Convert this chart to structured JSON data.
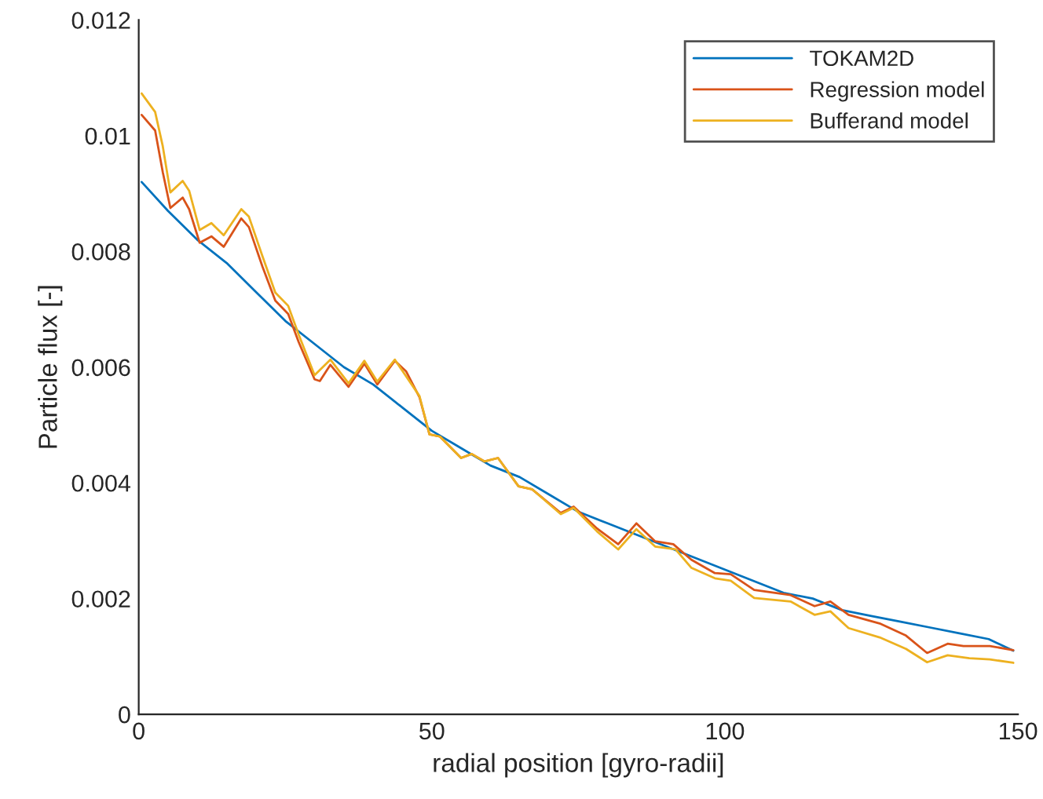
{
  "chart_data": {
    "type": "line",
    "xlabel": "radial position [gyro-radii]",
    "ylabel": "Particle flux [-]",
    "xlim": [
      0,
      150
    ],
    "ylim": [
      0,
      0.012
    ],
    "xticks": [
      0,
      50,
      100,
      150
    ],
    "yticks": [
      0,
      0.002,
      0.004,
      0.006,
      0.008,
      0.01,
      0.012
    ],
    "grid": false,
    "legend": "top right",
    "marker": "none",
    "line_style": "solid",
    "series": [
      {
        "name": "TOKAM2D",
        "color": "#0072bd",
        "x": [
          0.5,
          5,
          10,
          15,
          20,
          25,
          30,
          35,
          40,
          45,
          50,
          55,
          60,
          65,
          70,
          75,
          80,
          85,
          90,
          95,
          100,
          105,
          110,
          115,
          120,
          125,
          130,
          135,
          140,
          145,
          149.2
        ],
        "values": [
          0.0092,
          0.0087,
          0.0082,
          0.0078,
          0.0073,
          0.0068,
          0.0064,
          0.006,
          0.0057,
          0.0053,
          0.0049,
          0.0046,
          0.0043,
          0.0041,
          0.0038,
          0.0035,
          0.0033,
          0.0031,
          0.0029,
          0.0027,
          0.0025,
          0.0023,
          0.0021,
          0.002,
          0.0018,
          0.0017,
          0.0016,
          0.0015,
          0.0014,
          0.0013,
          0.0011
        ]
      },
      {
        "name": "Regression model",
        "color": "#d95319",
        "x": [
          0.5,
          2.8,
          4.1,
          5.4,
          7.5,
          8.6,
          10.4,
          12.4,
          14.5,
          17.5,
          18.8,
          21.1,
          23.3,
          25.5,
          27.3,
          30.0,
          30.9,
          32.7,
          35.8,
          38.5,
          40.7,
          43.7,
          45.6,
          47.9,
          49.6,
          51.4,
          55.0,
          56.8,
          59.0,
          61.3,
          64.8,
          67.1,
          72.0,
          74.2,
          78.2,
          81.8,
          84.9,
          88.1,
          91.2,
          94.3,
          98.3,
          101.0,
          105.0,
          111.2,
          115.3,
          118.0,
          121.1,
          126.4,
          130.9,
          134.5,
          138.0,
          140.7,
          145.2,
          149.2
        ],
        "values": [
          0.01036,
          0.01009,
          0.00937,
          0.00875,
          0.00893,
          0.00873,
          0.00815,
          0.00826,
          0.00808,
          0.00857,
          0.00842,
          0.00774,
          0.00715,
          0.00692,
          0.00643,
          0.00579,
          0.00576,
          0.00604,
          0.00566,
          0.00606,
          0.0057,
          0.00611,
          0.00593,
          0.00548,
          0.00484,
          0.0048,
          0.00443,
          0.0045,
          0.00437,
          0.00443,
          0.00394,
          0.00389,
          0.00348,
          0.00359,
          0.00321,
          0.00294,
          0.0033,
          0.00299,
          0.00294,
          0.00267,
          0.00244,
          0.00242,
          0.00215,
          0.00206,
          0.00187,
          0.00195,
          0.00172,
          0.00157,
          0.00136,
          0.00106,
          0.00122,
          0.00118,
          0.00118,
          0.00111
        ]
      },
      {
        "name": "Bufferand model",
        "color": "#edb120",
        "x": [
          0.5,
          2.8,
          4.1,
          5.4,
          7.5,
          8.6,
          10.4,
          12.4,
          14.5,
          17.5,
          18.8,
          21.1,
          23.3,
          25.5,
          27.3,
          30.0,
          32.7,
          35.8,
          38.5,
          40.7,
          43.7,
          47.9,
          49.6,
          51.4,
          55.0,
          56.8,
          59.0,
          61.3,
          64.8,
          67.1,
          72.0,
          74.2,
          78.2,
          81.8,
          84.9,
          88.1,
          91.6,
          94.3,
          98.3,
          101.0,
          105.0,
          111.2,
          115.3,
          118.0,
          121.1,
          126.4,
          130.9,
          134.5,
          138.0,
          141.7,
          145.2,
          149.2
        ],
        "values": [
          0.01073,
          0.01041,
          0.00982,
          0.00902,
          0.00922,
          0.00905,
          0.00837,
          0.00849,
          0.00828,
          0.00873,
          0.0086,
          0.00792,
          0.00729,
          0.00706,
          0.00656,
          0.00586,
          0.00613,
          0.00572,
          0.00611,
          0.00575,
          0.00613,
          0.0055,
          0.00484,
          0.0048,
          0.00443,
          0.0045,
          0.00437,
          0.00443,
          0.00394,
          0.00389,
          0.00346,
          0.00357,
          0.00316,
          0.00285,
          0.0032,
          0.0029,
          0.00285,
          0.00253,
          0.00235,
          0.00231,
          0.00201,
          0.00195,
          0.00172,
          0.00178,
          0.00149,
          0.00133,
          0.00113,
          0.0009,
          0.00102,
          0.00097,
          0.00095,
          0.00089
        ]
      }
    ]
  }
}
